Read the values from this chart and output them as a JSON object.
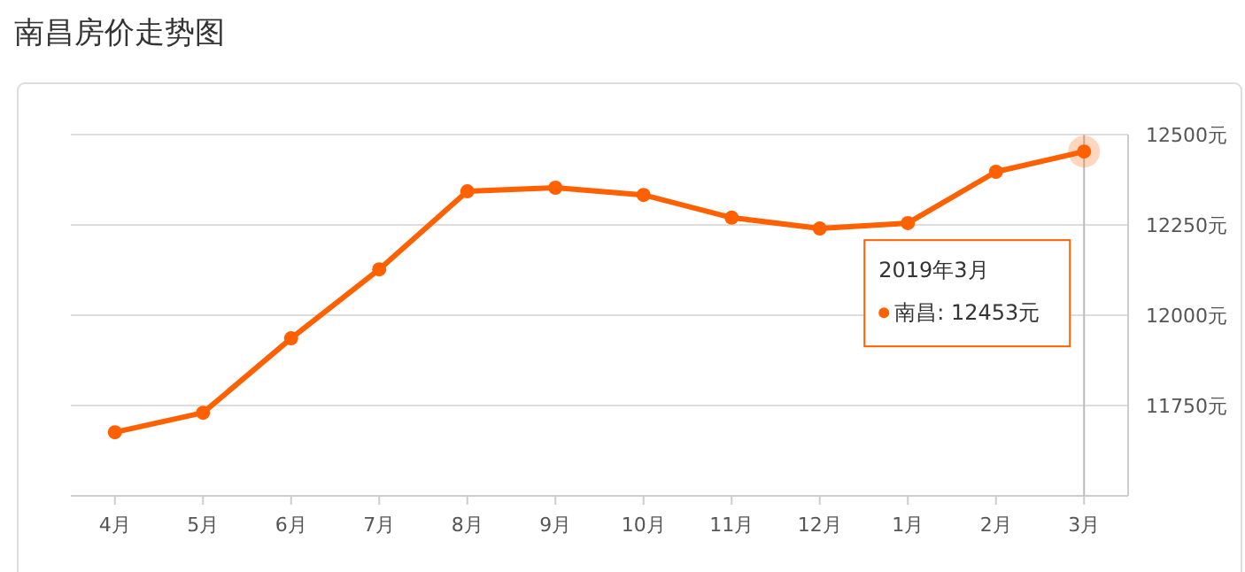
{
  "chart_data": {
    "type": "line",
    "title": "南昌房价走势图",
    "categories": [
      "4月",
      "5月",
      "6月",
      "7月",
      "8月",
      "9月",
      "10月",
      "11月",
      "12月",
      "1月",
      "2月",
      "3月"
    ],
    "series": [
      {
        "color": "#ff6000",
        "values": [
          11676,
          11730,
          11936,
          12127,
          12343,
          12353,
          12333,
          12270,
          12240,
          12255,
          12397,
          12453
        ]
      }
    ],
    "ylim": [
      11500,
      12500
    ],
    "yticks": [
      {
        "value": 11750,
        "label": "11750元"
      },
      {
        "value": 12000,
        "label": "12000元"
      },
      {
        "value": 12250,
        "label": "12250元"
      },
      {
        "value": 12500,
        "label": "12500元"
      }
    ],
    "grid": "y",
    "marker": "circle",
    "line_style": "solid",
    "ref_lines": [
      {
        "axis": "x",
        "value": "3月",
        "color": "#bbbbbb"
      }
    ],
    "annotations": [
      "2019年3月",
      "南昌: 12453元"
    ]
  }
}
